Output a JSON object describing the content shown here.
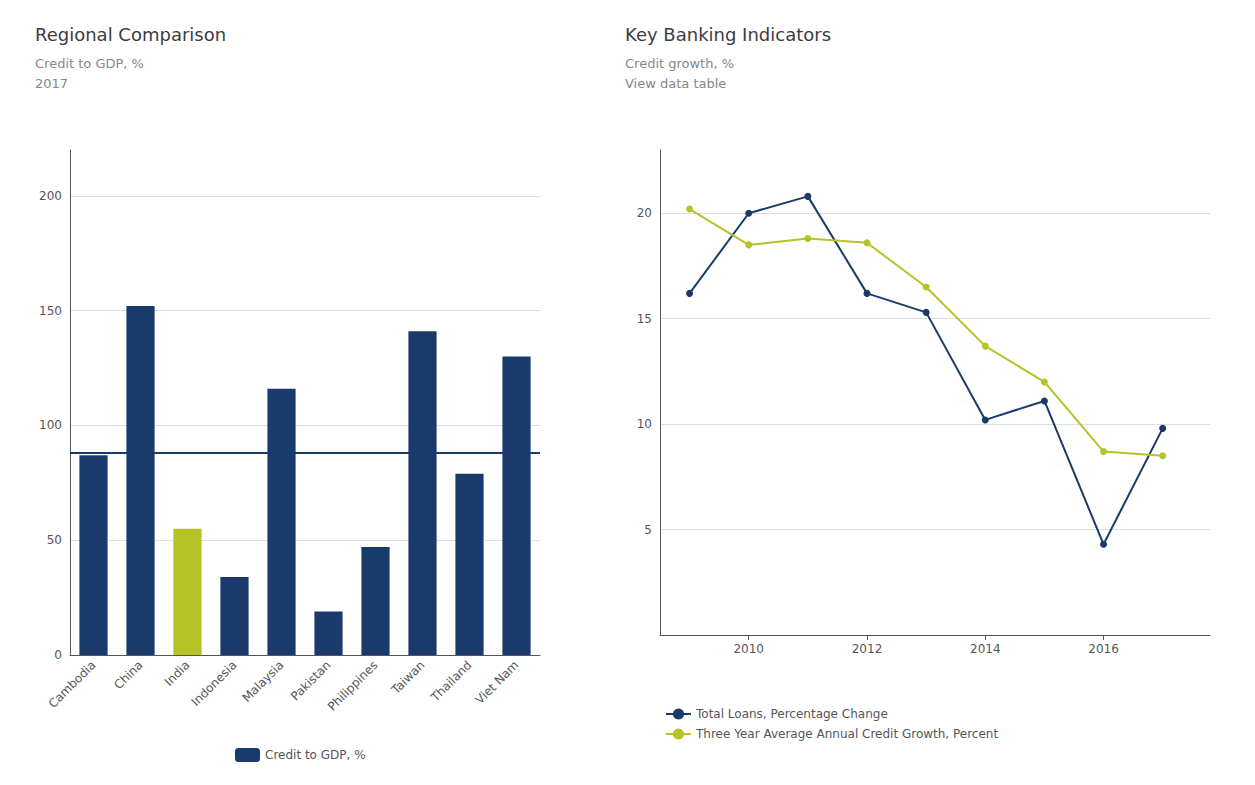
{
  "chart_data": [
    {
      "type": "bar",
      "title": "Regional Comparison",
      "annotations": [
        "Credit to GDP, %",
        "2017"
      ],
      "categories": [
        "Cambodia",
        "China",
        "India",
        "Indonesia",
        "Malaysia",
        "Pakistan",
        "Philippines",
        "Taiwan",
        "Thailand",
        "Viet Nam"
      ],
      "series": [
        {
          "name": "Credit to GDP, %",
          "color": "#1a3a6b",
          "colors": [
            "#1a3a6b",
            "#1a3a6b",
            "#b5c327",
            "#1a3a6b",
            "#1a3a6b",
            "#1a3a6b",
            "#1a3a6b",
            "#1a3a6b",
            "#1a3a6b",
            "#1a3a6b"
          ],
          "values": [
            87,
            152,
            55,
            34,
            116,
            19,
            47,
            141,
            79,
            130
          ]
        }
      ],
      "average": 88,
      "ylim": [
        0,
        220
      ],
      "yticks": [
        0,
        50,
        100,
        150,
        200
      ],
      "grid": true,
      "legend": "bottom"
    },
    {
      "type": "line",
      "title": "Key Banking Indicators",
      "annotations": [
        "Credit growth, %",
        "View data table"
      ],
      "x": [
        2009,
        2010,
        2011,
        2012,
        2013,
        2014,
        2015,
        2016,
        2017
      ],
      "series": [
        {
          "name": "Total Loans, Percentage Change",
          "color": "#1a3a6b",
          "values": [
            16.2,
            20.0,
            20.8,
            16.2,
            15.3,
            10.2,
            11.1,
            4.3,
            9.8
          ]
        },
        {
          "name": "Three Year Average Annual Credit Growth, Percent",
          "color": "#b5c327",
          "values": [
            20.2,
            18.5,
            18.8,
            18.6,
            16.5,
            13.7,
            12.0,
            8.7,
            8.5
          ]
        }
      ],
      "xlim": [
        2008.5,
        2017.8
      ],
      "xticks": [
        2010,
        2012,
        2014,
        2016
      ],
      "ylim": [
        0,
        23
      ],
      "yticks": [
        5,
        10,
        15,
        20
      ],
      "grid": true,
      "legend": "bottom",
      "marker": "circle"
    }
  ]
}
